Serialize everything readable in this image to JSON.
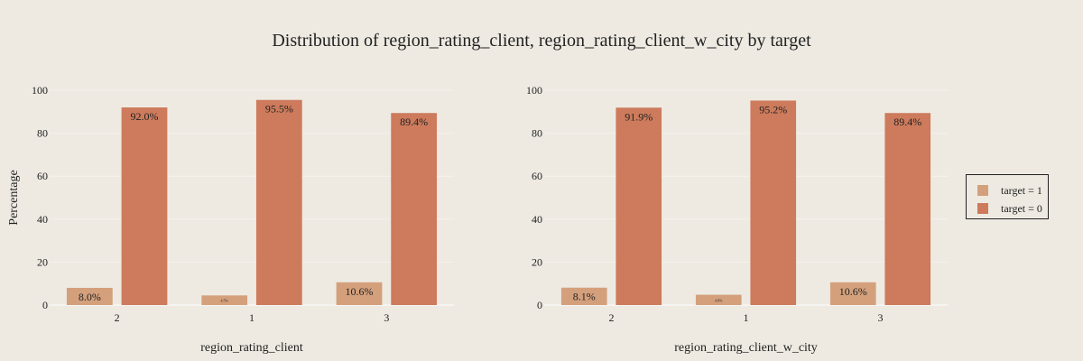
{
  "colors": {
    "background": "#EEEAE2",
    "target_1": "#D4A07C",
    "target_0": "#CD7B5C",
    "grid": "#F5F2EC"
  },
  "chart_data": {
    "type": "bar",
    "title": "Distribution of region_rating_client, region_rating_client_w_city by target",
    "ylabel": "Percentage",
    "ylim": [
      0,
      100
    ],
    "yticks": [
      0,
      20,
      40,
      60,
      80,
      100
    ],
    "legend_position": "right",
    "legend": [
      "target = 1",
      "target = 0"
    ],
    "panels": [
      {
        "xlabel": "region_rating_client",
        "categories": [
          "2",
          "1",
          "3"
        ],
        "series": [
          {
            "name": "target = 1",
            "values": [
              8.0,
              4.5,
              10.6
            ],
            "labels": [
              "8.0%",
              "4.5%",
              "10.6%"
            ]
          },
          {
            "name": "target = 0",
            "values": [
              92.0,
              95.5,
              89.4
            ],
            "labels": [
              "92.0%",
              "95.5%",
              "89.4%"
            ]
          }
        ]
      },
      {
        "xlabel": "region_rating_client_w_city",
        "categories": [
          "2",
          "1",
          "3"
        ],
        "series": [
          {
            "name": "target = 1",
            "values": [
              8.1,
              4.8,
              10.6
            ],
            "labels": [
              "8.1%",
              "4.8%",
              "10.6%"
            ]
          },
          {
            "name": "target = 0",
            "values": [
              91.9,
              95.2,
              89.4
            ],
            "labels": [
              "91.9%",
              "95.2%",
              "89.4%"
            ]
          }
        ]
      }
    ]
  }
}
